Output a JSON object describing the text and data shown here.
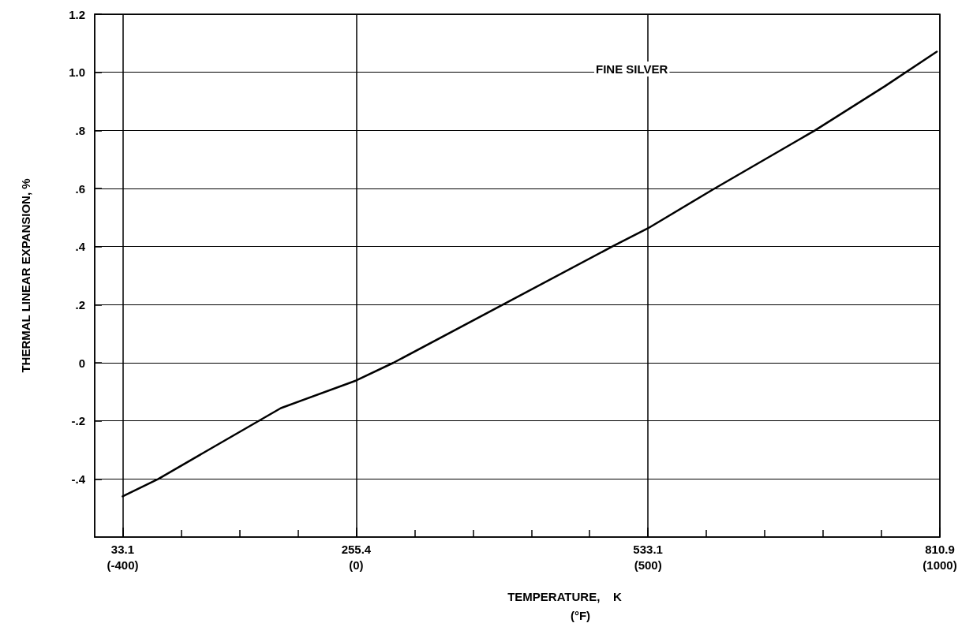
{
  "chart_data": {
    "type": "line",
    "xlabel": "TEMPERATURE,    K",
    "x2label": "(°F)",
    "ylabel": "THERMAL LINEAR EXPANSION, %",
    "series": [
      {
        "name": "FINE SILVER",
        "color": "#000000",
        "x": [
          33.1,
          67,
          183.7,
          255.4,
          290.8,
          499,
          533.1,
          595.6,
          692,
          758.5,
          808
        ],
        "values": [
          -0.46,
          -0.4,
          -0.156,
          -0.061,
          0,
          0.4,
          0.463,
          0.598,
          0.8,
          0.952,
          1.071
        ]
      }
    ],
    "xlim": [
      6.5,
      810.9
    ],
    "xticks": [
      33.1,
      255.4,
      533.1,
      810.9
    ],
    "x2lim": [
      -448,
      1000
    ],
    "x2ticks": [
      {
        "value": -400,
        "label": "(-400)"
      },
      {
        "value": -300,
        "label": null
      },
      {
        "value": -200,
        "label": null
      },
      {
        "value": -100,
        "label": null
      },
      {
        "value": 0,
        "label": "(0)"
      },
      {
        "value": 100,
        "label": null
      },
      {
        "value": 200,
        "label": null
      },
      {
        "value": 300,
        "label": null
      },
      {
        "value": 400,
        "label": null
      },
      {
        "value": 500,
        "label": "(500)"
      },
      {
        "value": 600,
        "label": null
      },
      {
        "value": 700,
        "label": null
      },
      {
        "value": 800,
        "label": null
      },
      {
        "value": 900,
        "label": null
      },
      {
        "value": 1000,
        "label": "(1000)"
      }
    ],
    "ylim": [
      -0.6,
      1.2
    ],
    "yticks": [
      {
        "value": -0.4,
        "label": "-.4"
      },
      {
        "value": -0.2,
        "label": "-.2"
      },
      0,
      {
        "value": 0.2,
        "label": ".2"
      },
      {
        "value": 0.4,
        "label": ".4"
      },
      {
        "value": 0.6,
        "label": ".6"
      },
      {
        "value": 0.8,
        "label": ".8"
      },
      {
        "value": 1.0,
        "label": "1.0"
      },
      1.2
    ],
    "grid": true,
    "legend": false,
    "marker": "none",
    "line_style": "solid"
  }
}
